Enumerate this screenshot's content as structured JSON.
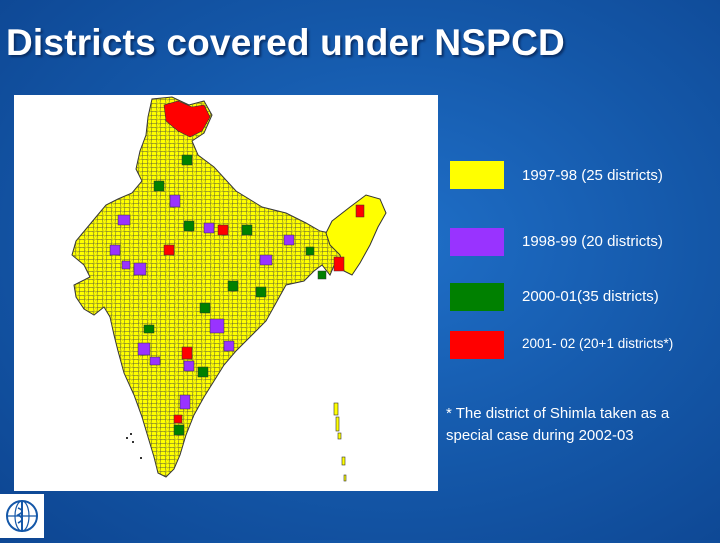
{
  "slide": {
    "title": "Districts covered under NSPCD"
  },
  "legend": [
    {
      "label": "1997-98 (25 districts)",
      "color": "#ffff00"
    },
    {
      "label": "1998-99 (20 districts)",
      "color": "#9933ff"
    },
    {
      "label": "2000-01(35 districts)",
      "color": "#008000"
    },
    {
      "label": "2001- 02 (20+1 districts*)",
      "color": "#ff0000"
    }
  ],
  "footnote": "* The district of Shimla taken as a special case during 2002-03",
  "colors": {
    "background": "#1457a8",
    "map_fill": "#ffff00",
    "district_border": "#555555",
    "purple": "#9933ff",
    "green": "#008000",
    "red": "#ff0000"
  },
  "logo": {
    "icon": "who-emblem-icon"
  }
}
